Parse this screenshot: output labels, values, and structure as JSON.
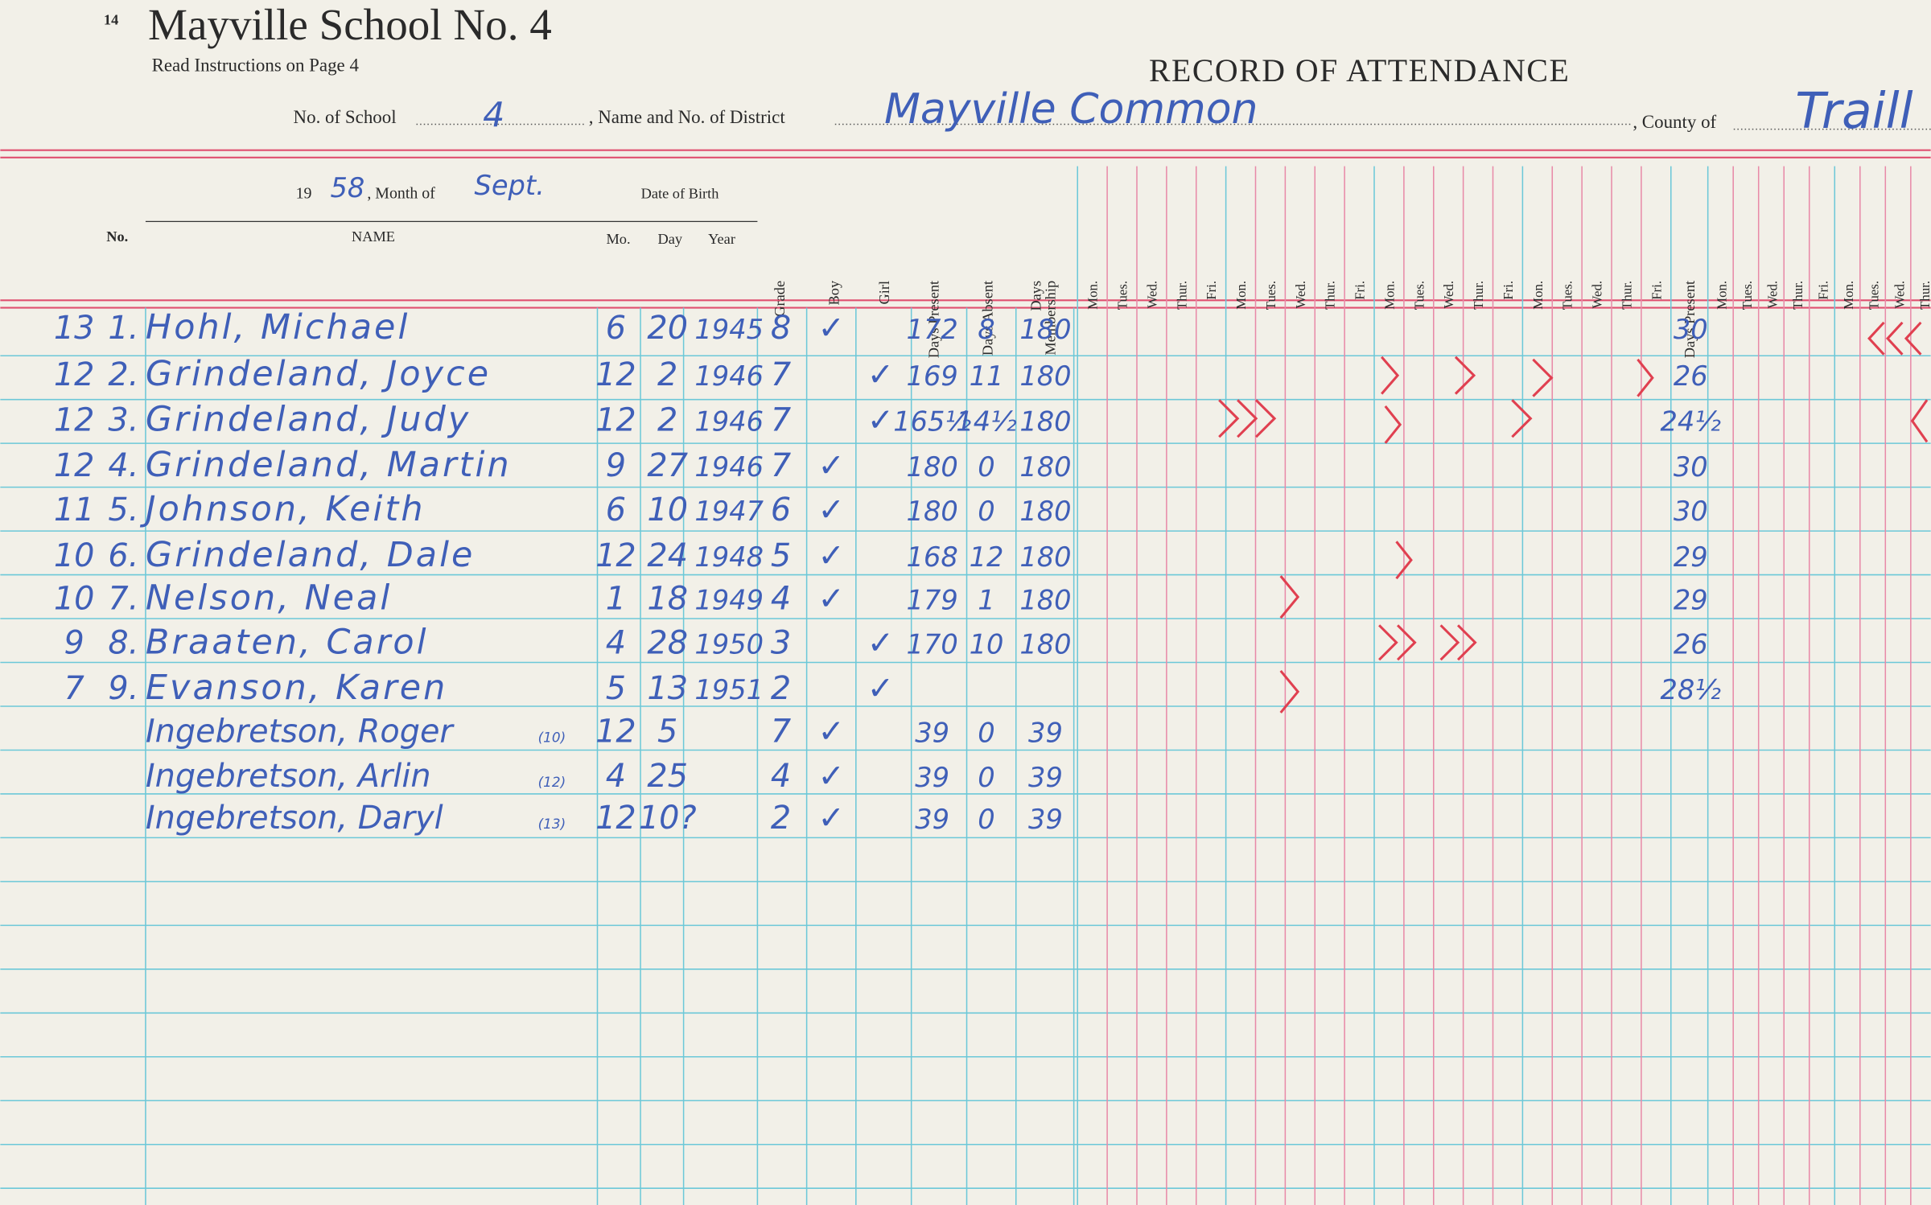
{
  "page_number": "14",
  "title": "Mayville School No. 4",
  "instructions": "Read Instructions on Page 4",
  "record_title": "RECORD OF ATTENDANCE",
  "fields": {
    "school_no_label": "No. of School",
    "school_no": "4",
    "district_label": ", Name and No. of District",
    "district": "Mayville Common",
    "county_label": ", County of",
    "county": "Traill"
  },
  "period": {
    "century": "19",
    "year": "58",
    "month_label": ", Month of",
    "month": "Sept."
  },
  "columns": {
    "no": "No.",
    "name": "NAME",
    "dob": "Date of Birth",
    "mo": "Mo.",
    "day": "Day",
    "year": "Year",
    "grade": "Grade",
    "boy": "Boy",
    "girl": "Girl",
    "days_present": "Days Present",
    "days_absent": "Days Absent",
    "membership_1": "Days",
    "membership_2": "Membership",
    "month_present": "Days Present"
  },
  "weekdays": [
    "Mon.",
    "Tues.",
    "Wed.",
    "Thur.",
    "Fri."
  ],
  "rows": [
    {
      "age": "13",
      "no": "1.",
      "name": "Hohl, Michael",
      "mo": "6",
      "day": "20",
      "year": "1945",
      "grade": "8",
      "boy": "✓",
      "present": "172",
      "absent": "8",
      "membership": "180",
      "month_present": "30"
    },
    {
      "age": "12",
      "no": "2.",
      "name": "Grindeland, Joyce",
      "mo": "12",
      "day": "2",
      "year": "1946",
      "grade": "7",
      "girl": "✓",
      "present": "169",
      "absent": "11",
      "membership": "180",
      "month_present": "26"
    },
    {
      "age": "12",
      "no": "3.",
      "name": "Grindeland, Judy",
      "mo": "12",
      "day": "2",
      "year": "1946",
      "grade": "7",
      "girl": "✓",
      "present": "165½",
      "absent": "14½",
      "membership": "180",
      "month_present": "24½"
    },
    {
      "age": "12",
      "no": "4.",
      "name": "Grindeland, Martin",
      "mo": "9",
      "day": "27",
      "year": "1946",
      "grade": "7",
      "boy": "✓",
      "present": "180",
      "absent": "0",
      "membership": "180",
      "month_present": "30"
    },
    {
      "age": "11",
      "no": "5.",
      "name": "Johnson, Keith",
      "mo": "6",
      "day": "10",
      "year": "1947",
      "grade": "6",
      "boy": "✓",
      "present": "180",
      "absent": "0",
      "membership": "180",
      "month_present": "30"
    },
    {
      "age": "10",
      "no": "6.",
      "name": "Grindeland, Dale",
      "mo": "12",
      "day": "24",
      "year": "1948",
      "grade": "5",
      "boy": "✓",
      "present": "168",
      "absent": "12",
      "membership": "180",
      "month_present": "29"
    },
    {
      "age": "10",
      "no": "7.",
      "name": "Nelson, Neal",
      "mo": "1",
      "day": "18",
      "year": "1949",
      "grade": "4",
      "boy": "✓",
      "present": "179",
      "absent": "1",
      "membership": "180",
      "month_present": "29"
    },
    {
      "age": "9",
      "no": "8.",
      "name": "Braaten, Carol",
      "mo": "4",
      "day": "28",
      "year": "1950",
      "grade": "3",
      "girl": "✓",
      "present": "170",
      "absent": "10",
      "membership": "180",
      "month_present": "26"
    },
    {
      "age": "7",
      "no": "9.",
      "name": "Evanson, Karen",
      "mo": "5",
      "day": "13",
      "year": "1951",
      "grade": "2",
      "girl": "✓",
      "month_present": "28½"
    },
    {
      "name": "Ingebretson, Roger",
      "note": "(10)",
      "mo": "12",
      "day": "5",
      "grade": "7",
      "boy": "✓",
      "present": "39",
      "absent": "0",
      "membership": "39"
    },
    {
      "name": "Ingebretson, Arlin",
      "note": "(12)",
      "mo": "4",
      "day": "25",
      "grade": "4",
      "boy": "✓",
      "present": "39",
      "absent": "0",
      "membership": "39"
    },
    {
      "name": "Ingebretson, Daryl",
      "note": "(13)",
      "mo": "12",
      "day": "10?",
      "grade": "2",
      "boy": "✓",
      "present": "39",
      "absent": "0",
      "membership": "39"
    }
  ]
}
